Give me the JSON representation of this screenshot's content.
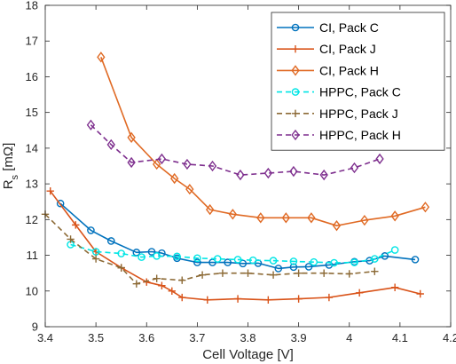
{
  "chart_data": {
    "type": "line",
    "xlabel": "Cell Voltage [V]",
    "ylabel": {
      "main": "R",
      "sub": "s",
      "unit": " [mΩ]"
    },
    "xlim": [
      3.4,
      4.2
    ],
    "ylim": [
      9,
      18
    ],
    "xticks": [
      "3.4",
      "3.5",
      "3.6",
      "3.7",
      "3.8",
      "3.9",
      "4",
      "4.1",
      "4.2"
    ],
    "yticks": [
      "9",
      "10",
      "11",
      "12",
      "13",
      "14",
      "15",
      "16",
      "17",
      "18"
    ],
    "grid": false,
    "legend_position": "top-right",
    "series": [
      {
        "name": "CI, Pack C",
        "color": "#0072BD",
        "dash": "solid",
        "marker": "circle",
        "x": [
          3.43,
          3.49,
          3.53,
          3.58,
          3.61,
          3.63,
          3.66,
          3.7,
          3.73,
          3.76,
          3.79,
          3.82,
          3.86,
          3.89,
          3.92,
          3.96,
          4.01,
          4.04,
          4.07,
          4.13
        ],
        "y": [
          12.45,
          11.7,
          11.4,
          11.08,
          11.1,
          11.06,
          10.92,
          10.8,
          10.8,
          10.8,
          10.77,
          10.78,
          10.63,
          10.67,
          10.68,
          10.73,
          10.82,
          10.85,
          10.98,
          10.88
        ]
      },
      {
        "name": "CI, Pack J",
        "color": "#D95319",
        "dash": "solid",
        "marker": "plus",
        "x": [
          3.41,
          3.46,
          3.5,
          3.55,
          3.6,
          3.63,
          3.65,
          3.67,
          3.72,
          3.78,
          3.84,
          3.9,
          3.96,
          4.02,
          4.09,
          4.14
        ],
        "y": [
          12.8,
          11.85,
          11.1,
          10.65,
          10.25,
          10.15,
          10.0,
          9.82,
          9.75,
          9.78,
          9.75,
          9.78,
          9.82,
          9.95,
          10.1,
          9.92
        ]
      },
      {
        "name": "CI, Pack H",
        "color": "#E06A24",
        "dash": "solid",
        "marker": "diamond",
        "x": [
          3.51,
          3.57,
          3.62,
          3.655,
          3.685,
          3.725,
          3.77,
          3.825,
          3.875,
          3.925,
          3.975,
          4.03,
          4.09,
          4.15
        ],
        "y": [
          16.55,
          14.3,
          13.55,
          13.15,
          12.85,
          12.28,
          12.15,
          12.05,
          12.05,
          12.05,
          11.83,
          11.98,
          12.1,
          12.35
        ]
      },
      {
        "name": "HPPC, Pack C",
        "color": "#00E5E5",
        "dash": "dashed",
        "marker": "circle",
        "x": [
          3.45,
          3.5,
          3.55,
          3.59,
          3.62,
          3.66,
          3.7,
          3.74,
          3.78,
          3.81,
          3.85,
          3.89,
          3.93,
          3.97,
          4.01,
          4.05,
          4.09
        ],
        "y": [
          11.3,
          11.1,
          11.05,
          10.95,
          10.98,
          10.97,
          10.92,
          10.9,
          10.88,
          10.86,
          10.85,
          10.83,
          10.81,
          10.79,
          10.8,
          10.9,
          11.15
        ]
      },
      {
        "name": "HPPC, Pack J",
        "color": "#8C6A36",
        "dash": "dashed",
        "marker": "plus",
        "x": [
          3.4,
          3.45,
          3.5,
          3.55,
          3.58,
          3.62,
          3.67,
          3.71,
          3.75,
          3.8,
          3.85,
          3.9,
          3.95,
          4.0,
          4.05
        ],
        "y": [
          12.15,
          11.45,
          10.9,
          10.65,
          10.2,
          10.35,
          10.3,
          10.45,
          10.5,
          10.5,
          10.45,
          10.5,
          10.5,
          10.48,
          10.55
        ]
      },
      {
        "name": "HPPC, Pack H",
        "color": "#7E2F8E",
        "dash": "dashed",
        "marker": "diamond",
        "x": [
          3.49,
          3.53,
          3.57,
          3.63,
          3.68,
          3.73,
          3.785,
          3.84,
          3.89,
          3.95,
          4.01,
          4.06
        ],
        "y": [
          14.65,
          14.1,
          13.6,
          13.7,
          13.55,
          13.5,
          13.25,
          13.3,
          13.35,
          13.25,
          13.45,
          13.7
        ]
      }
    ]
  }
}
